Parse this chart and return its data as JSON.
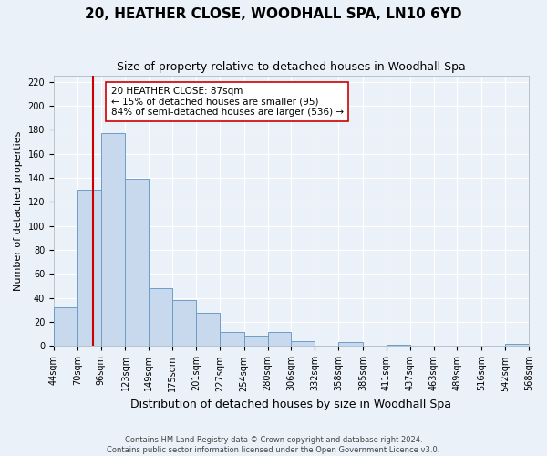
{
  "title": "20, HEATHER CLOSE, WOODHALL SPA, LN10 6YD",
  "subtitle": "Size of property relative to detached houses in Woodhall Spa",
  "xlabel": "Distribution of detached houses by size in Woodhall Spa",
  "ylabel": "Number of detached properties",
  "bin_edges": [
    44,
    70,
    96,
    123,
    149,
    175,
    201,
    227,
    254,
    280,
    306,
    332,
    358,
    385,
    411,
    437,
    463,
    489,
    516,
    542,
    568
  ],
  "bin_heights": [
    32,
    130,
    177,
    139,
    48,
    38,
    28,
    12,
    9,
    12,
    4,
    0,
    3,
    0,
    1,
    0,
    0,
    0,
    0,
    2
  ],
  "bar_color": "#c8d9ed",
  "bar_edge_color": "#6b9ec8",
  "property_line_x": 87,
  "property_line_color": "#cc0000",
  "annotation_line1": "20 HEATHER CLOSE: 87sqm",
  "annotation_line2": "← 15% of detached houses are smaller (95)",
  "annotation_line3": "84% of semi-detached houses are larger (536) →",
  "annotation_box_facecolor": "#ffffff",
  "annotation_box_edgecolor": "#cc0000",
  "ylim": [
    0,
    225
  ],
  "yticks": [
    0,
    20,
    40,
    60,
    80,
    100,
    120,
    140,
    160,
    180,
    200,
    220
  ],
  "tick_labels": [
    "44sqm",
    "70sqm",
    "96sqm",
    "123sqm",
    "149sqm",
    "175sqm",
    "201sqm",
    "227sqm",
    "254sqm",
    "280sqm",
    "306sqm",
    "332sqm",
    "358sqm",
    "385sqm",
    "411sqm",
    "437sqm",
    "463sqm",
    "489sqm",
    "516sqm",
    "542sqm",
    "568sqm"
  ],
  "background_color": "#eaf1f8",
  "plot_background_color": "#eaf1f8",
  "grid_color": "#d0d8e0",
  "title_fontsize": 11,
  "subtitle_fontsize": 9,
  "xlabel_fontsize": 9,
  "ylabel_fontsize": 8,
  "tick_fontsize": 7,
  "footer_line1": "Contains HM Land Registry data © Crown copyright and database right 2024.",
  "footer_line2": "Contains public sector information licensed under the Open Government Licence v3.0."
}
